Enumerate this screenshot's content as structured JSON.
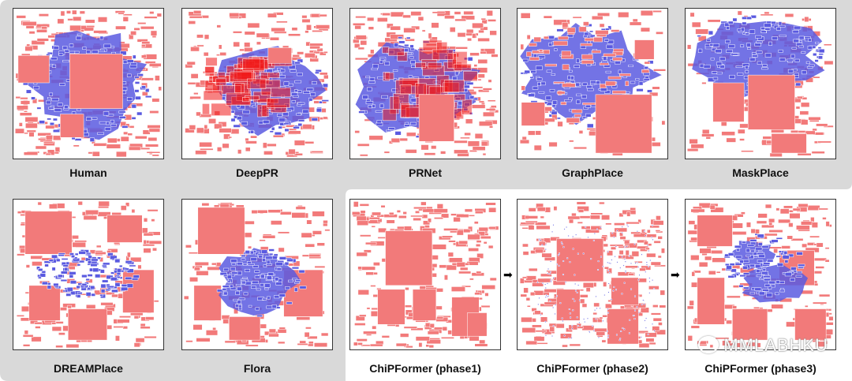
{
  "figure": {
    "panels": [
      {
        "id": "human",
        "label": "Human",
        "style": "human"
      },
      {
        "id": "deeppr",
        "label": "DeepPR",
        "style": "deeppr"
      },
      {
        "id": "prnet",
        "label": "PRNet",
        "style": "prnet"
      },
      {
        "id": "graphplace",
        "label": "GraphPlace",
        "style": "graphplace"
      },
      {
        "id": "maskplace",
        "label": "MaskPlace",
        "style": "maskplace"
      },
      {
        "id": "dreamplace",
        "label": "DREAMPlace",
        "style": "dreamplace"
      },
      {
        "id": "flora",
        "label": "Flora",
        "style": "flora"
      },
      {
        "id": "chipformer1",
        "label": "ChiPFormer (phase1)",
        "style": "phase1"
      },
      {
        "id": "chipformer2",
        "label": "ChiPFormer (phase2)",
        "style": "phase2"
      },
      {
        "id": "chipformer3",
        "label": "ChiPFormer (phase3)",
        "style": "phase3"
      }
    ],
    "arrow_symbol": "➡",
    "watermark": "MMLABHKU",
    "colors": {
      "macro": "#f27a7a",
      "std_cell": "#5a5ae0",
      "overlap": "#f01c1c",
      "background_panel": "#d9d9d9"
    }
  }
}
